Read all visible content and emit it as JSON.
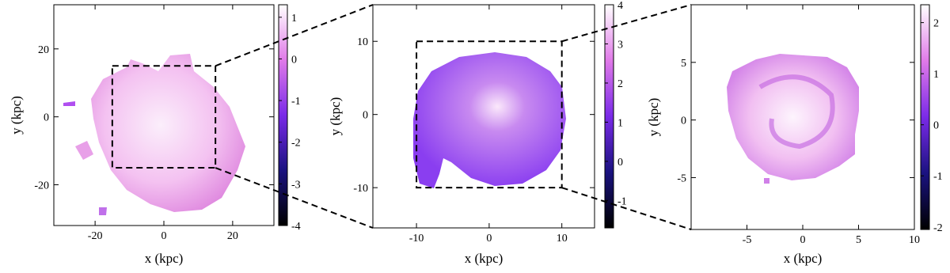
{
  "chart_data": [
    {
      "type": "image",
      "xlabel": "x (kpc)",
      "ylabel": "y (kpc)",
      "xlim": [
        -32,
        32
      ],
      "ylim": [
        -32,
        33
      ],
      "xticks": [
        -20,
        0,
        20
      ],
      "yticks": [
        -20,
        0,
        20
      ],
      "colorbar": {
        "lim": [
          -4,
          1.3
        ],
        "ticks": [
          -4,
          -3,
          -2,
          -1,
          0,
          1
        ]
      },
      "box": {
        "xlim": [
          -15,
          15
        ],
        "ylim": [
          -15,
          15
        ]
      }
    },
    {
      "type": "image",
      "xlabel": "x (kpc)",
      "ylabel": "y (kpc)",
      "xlim": [
        -16,
        14.5
      ],
      "ylim": [
        -15.5,
        15
      ],
      "xticks": [
        -10,
        0,
        10
      ],
      "yticks": [
        -10,
        0,
        10
      ],
      "colorbar": {
        "lim": [
          -1.7,
          4
        ],
        "ticks": [
          -1,
          0,
          1,
          2,
          3,
          4
        ]
      },
      "box": {
        "xlim": [
          -10,
          10
        ],
        "ylim": [
          -10,
          10
        ]
      }
    },
    {
      "type": "image",
      "xlabel": "x (kpc)",
      "ylabel": "y (kpc)",
      "xlim": [
        -10,
        10
      ],
      "ylim": [
        -9.5,
        10
      ],
      "xticks": [
        -5,
        0,
        5,
        10
      ],
      "yticks": [
        -5,
        0,
        5
      ],
      "colorbar": {
        "lim": [
          -2.05,
          2.35
        ],
        "ticks": [
          -2,
          -1,
          0,
          1,
          2
        ]
      }
    }
  ]
}
